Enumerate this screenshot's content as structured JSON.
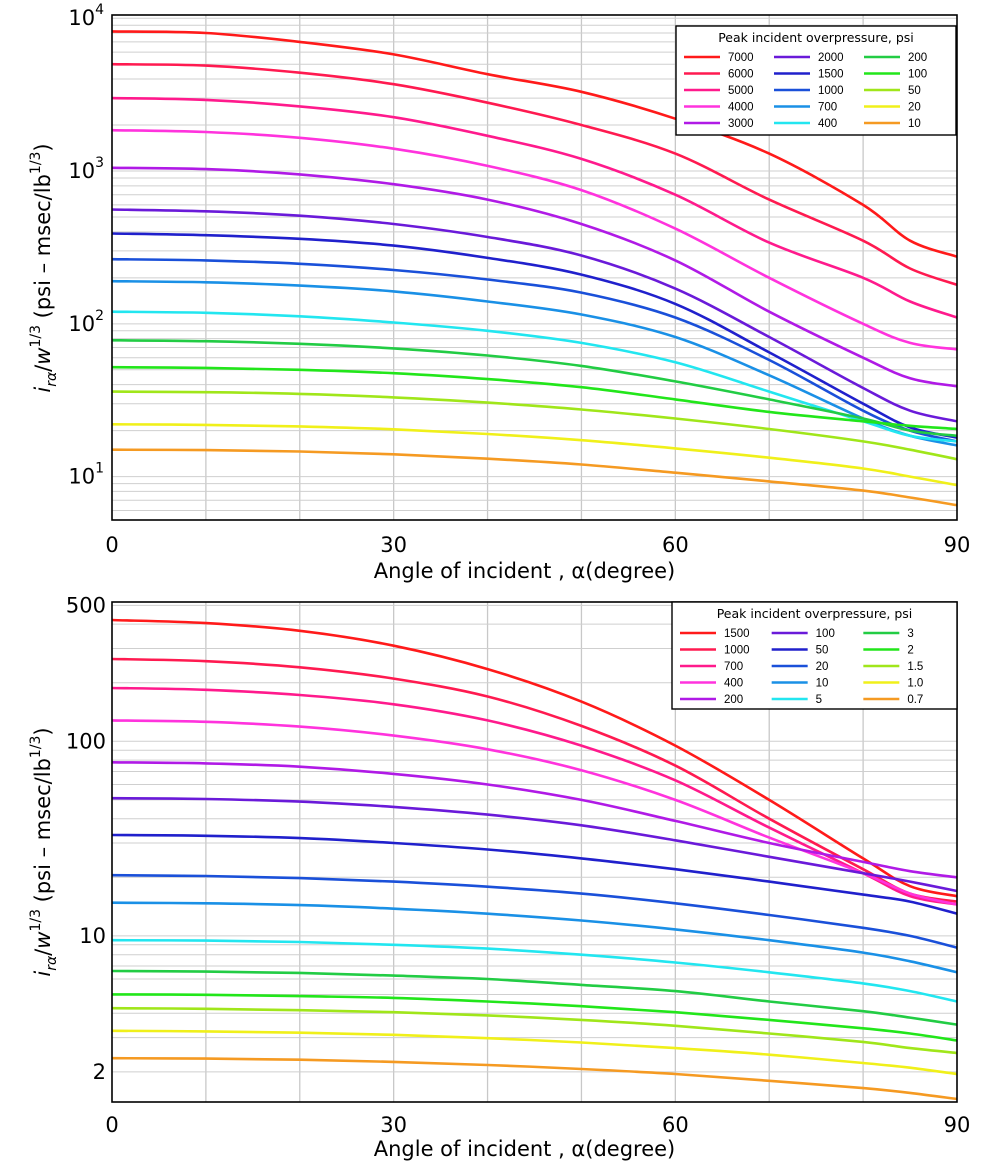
{
  "chart_data": [
    {
      "type": "line",
      "xlabel": "Angle of incident , α(degree)",
      "ylabel": "i_rα/w^1/3 (psi – msec/lb^1/3)",
      "xlim": [
        0,
        90
      ],
      "ylim": [
        5.2,
        10500
      ],
      "yscale": "log",
      "grid": true,
      "x_ticks": [
        "0",
        "30",
        "60",
        "90"
      ],
      "y_ticks": [
        {
          "value": 10,
          "base": "10",
          "exp": "1"
        },
        {
          "value": 100,
          "base": "10",
          "exp": "2"
        },
        {
          "value": 1000,
          "base": "10",
          "exp": "3"
        },
        {
          "value": 10000,
          "base": "10",
          "exp": "4"
        }
      ],
      "legend_title": "Peak incident overpressure, psi",
      "legend_position": "top-right",
      "x": [
        0,
        10,
        20,
        30,
        40,
        50,
        60,
        70,
        80,
        85,
        90
      ],
      "series": [
        {
          "name": "7000",
          "color": "#ff1a1a",
          "values": [
            8200,
            8000,
            7000,
            5800,
            4300,
            3300,
            2200,
            1300,
            600,
            350,
            275
          ]
        },
        {
          "name": "6000",
          "color": "#ff1a50",
          "values": [
            5000,
            4900,
            4400,
            3700,
            2800,
            2000,
            1300,
            650,
            350,
            230,
            180
          ]
        },
        {
          "name": "5000",
          "color": "#ff1a8c",
          "values": [
            3000,
            2920,
            2650,
            2250,
            1700,
            1200,
            700,
            340,
            200,
            140,
            110
          ]
        },
        {
          "name": "4000",
          "color": "#ff33dd",
          "values": [
            1850,
            1800,
            1650,
            1400,
            1080,
            750,
            420,
            200,
            100,
            75,
            68
          ]
        },
        {
          "name": "3000",
          "color": "#b01ae6",
          "values": [
            1050,
            1030,
            950,
            820,
            650,
            450,
            260,
            120,
            60,
            44,
            39
          ]
        },
        {
          "name": "2000",
          "color": "#6a1ad9",
          "values": [
            560,
            545,
            510,
            450,
            370,
            280,
            170,
            82,
            38,
            27,
            23
          ]
        },
        {
          "name": "1500",
          "color": "#2020cc",
          "values": [
            390,
            380,
            360,
            325,
            270,
            210,
            135,
            65,
            30,
            21,
            18
          ]
        },
        {
          "name": "1000",
          "color": "#1a50d9",
          "values": [
            265,
            260,
            247,
            225,
            195,
            160,
            110,
            58,
            27,
            20,
            17
          ]
        },
        {
          "name": "700",
          "color": "#1a90e6",
          "values": [
            190,
            187,
            178,
            163,
            140,
            115,
            82,
            46,
            24,
            18.5,
            16
          ]
        },
        {
          "name": "400",
          "color": "#22e6f0",
          "values": [
            120,
            118,
            112,
            102,
            90,
            75,
            56,
            36,
            23,
            18.5,
            17
          ]
        },
        {
          "name": "200",
          "color": "#22cc44",
          "values": [
            78,
            77,
            74,
            69,
            62,
            53,
            42,
            32,
            24,
            20,
            18.5
          ]
        },
        {
          "name": "100",
          "color": "#22e61a",
          "values": [
            52,
            51.5,
            50,
            47.5,
            43.5,
            38.5,
            32,
            26.5,
            23,
            21.5,
            20.5
          ]
        },
        {
          "name": "50",
          "color": "#a0e61a",
          "values": [
            36,
            35.7,
            34.8,
            33,
            30.5,
            27.5,
            24,
            20.5,
            17,
            15,
            13
          ]
        },
        {
          "name": "20",
          "color": "#f0f01a",
          "values": [
            22,
            21.8,
            21.3,
            20.4,
            19,
            17.3,
            15.3,
            13.3,
            11.3,
            10,
            8.8
          ]
        },
        {
          "name": "10",
          "color": "#f59a22",
          "values": [
            15,
            14.9,
            14.6,
            14,
            13.1,
            12,
            10.6,
            9.3,
            8.1,
            7.3,
            6.5
          ]
        }
      ]
    },
    {
      "type": "line",
      "xlabel": "Angle of incident , α(degree)",
      "ylabel": "i_rα/w^1/3 (psi – msec/lb^1/3)",
      "xlim": [
        0,
        90
      ],
      "ylim": [
        1.4,
        520
      ],
      "yscale": "log",
      "grid": true,
      "x_ticks": [
        "0",
        "30",
        "60",
        "90"
      ],
      "y_ticks": [
        {
          "value": 2,
          "base": "2",
          "exp": ""
        },
        {
          "value": 10,
          "base": "10",
          "exp": ""
        },
        {
          "value": 100,
          "base": "100",
          "exp": ""
        },
        {
          "value": 500,
          "base": "500",
          "exp": ""
        }
      ],
      "legend_title": "Peak incident overpressure, psi",
      "legend_position": "top-right",
      "x": [
        0,
        10,
        20,
        30,
        40,
        50,
        60,
        70,
        80,
        85,
        90
      ],
      "series": [
        {
          "name": "1500",
          "color": "#ff1a1a",
          "values": [
            420,
            405,
            370,
            310,
            235,
            160,
            95,
            50,
            25,
            18,
            16
          ]
        },
        {
          "name": "1000",
          "color": "#ff1a50",
          "values": [
            265,
            258,
            240,
            210,
            170,
            120,
            75,
            40,
            22,
            16.5,
            15
          ]
        },
        {
          "name": "700",
          "color": "#ff1a8c",
          "values": [
            188,
            184,
            173,
            155,
            128,
            95,
            63,
            36,
            21,
            16,
            14.5
          ]
        },
        {
          "name": "400",
          "color": "#ff33dd",
          "values": [
            128,
            126,
            119,
            107,
            91,
            71,
            50,
            32,
            21,
            16.5,
            14.5
          ]
        },
        {
          "name": "200",
          "color": "#b01ae6",
          "values": [
            78,
            77,
            74,
            68,
            60,
            50,
            39,
            30,
            24,
            21.5,
            20
          ]
        },
        {
          "name": "100",
          "color": "#6a1ad9",
          "values": [
            51,
            50.5,
            49,
            46,
            42,
            37,
            31,
            25.5,
            21,
            19,
            17
          ]
        },
        {
          "name": "50",
          "color": "#2020cc",
          "values": [
            33,
            32.7,
            31.8,
            30,
            27.8,
            25,
            22,
            19,
            16.3,
            15,
            13
          ]
        },
        {
          "name": "20",
          "color": "#1a50d9",
          "values": [
            20.5,
            20.3,
            19.8,
            19,
            17.9,
            16.5,
            14.7,
            12.8,
            11,
            10,
            8.7
          ]
        },
        {
          "name": "10",
          "color": "#1a90e6",
          "values": [
            14.8,
            14.7,
            14.4,
            13.8,
            13,
            12,
            10.8,
            9.5,
            8.2,
            7.4,
            6.5
          ]
        },
        {
          "name": "5",
          "color": "#22e6f0",
          "values": [
            9.5,
            9.45,
            9.3,
            9,
            8.6,
            8,
            7.3,
            6.5,
            5.7,
            5.2,
            4.6
          ]
        },
        {
          "name": "3",
          "color": "#22cc44",
          "values": [
            6.6,
            6.55,
            6.45,
            6.25,
            6,
            5.6,
            5.2,
            4.6,
            4.1,
            3.8,
            3.5
          ]
        },
        {
          "name": "2",
          "color": "#22e61a",
          "values": [
            5,
            4.98,
            4.9,
            4.8,
            4.6,
            4.35,
            4.05,
            3.7,
            3.35,
            3.15,
            2.9
          ]
        },
        {
          "name": "1.5",
          "color": "#a0e61a",
          "values": [
            4.25,
            4.22,
            4.15,
            4.05,
            3.9,
            3.7,
            3.45,
            3.15,
            2.85,
            2.65,
            2.5
          ]
        },
        {
          "name": "1.0",
          "color": "#f0f01a",
          "values": [
            3.25,
            3.23,
            3.18,
            3.1,
            2.98,
            2.83,
            2.65,
            2.45,
            2.22,
            2.1,
            1.95
          ]
        },
        {
          "name": "0.7",
          "color": "#f59a22",
          "values": [
            2.35,
            2.34,
            2.31,
            2.25,
            2.17,
            2.07,
            1.95,
            1.8,
            1.65,
            1.56,
            1.45
          ]
        }
      ]
    }
  ]
}
